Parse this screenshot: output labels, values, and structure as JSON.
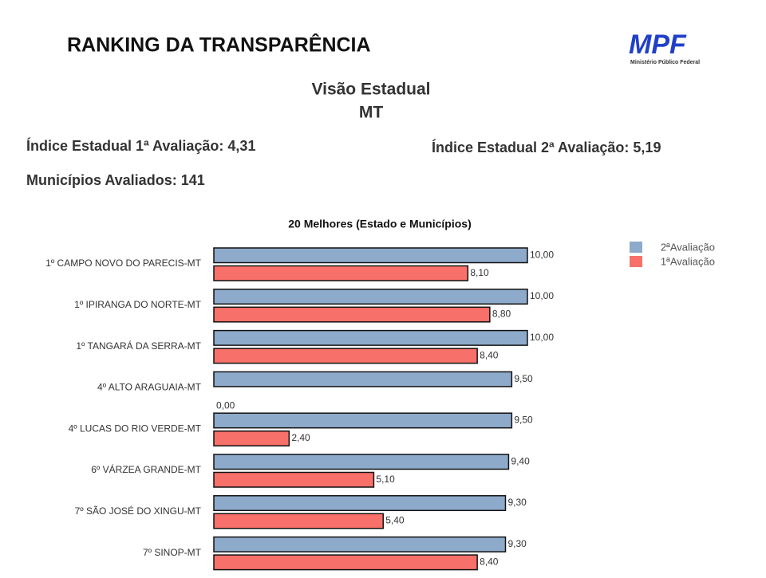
{
  "header": {
    "title": "RANKING DA TRANSPARÊNCIA",
    "logo": "MPF",
    "logo_subtitle": "Ministério Público Federal"
  },
  "heading": {
    "line1": "Visão Estadual",
    "line2": "MT"
  },
  "stats": {
    "index1": "Índice Estadual 1ª Avaliação: 4,31",
    "index2": "Índice Estadual 2ª Avaliação: 5,19",
    "municipalities": "Municípios Avaliados: 141"
  },
  "chart_data": {
    "type": "bar",
    "orientation": "horizontal",
    "title": "20 Melhores (Estado e Municípios)",
    "categories": [
      "1º CAMPO NOVO DO PARECIS-MT",
      "1º IPIRANGA DO NORTE-MT",
      "1º TANGARÁ DA SERRA-MT",
      "4º ALTO ARAGUAIA-MT",
      "4º LUCAS DO RIO VERDE-MT",
      "6º VÁRZEA GRANDE-MT",
      "7º SÃO JOSÉ DO XINGU-MT",
      "7º SINOP-MT"
    ],
    "series": [
      {
        "name": "2ªAvaliação",
        "color": "#8eaacb",
        "values": [
          10,
          10,
          10,
          9.5,
          9.5,
          9.4,
          9.3,
          9.3
        ],
        "value_labels": [
          "10,00",
          "10,00",
          "10,00",
          "9,50",
          "9,50",
          "9,40",
          "9,30",
          "9,30"
        ]
      },
      {
        "name": "1ªAvaliação",
        "color": "#f8706a",
        "values": [
          8.1,
          8.8,
          8.4,
          0,
          2.4,
          5.1,
          5.4,
          8.4
        ],
        "value_labels": [
          "8,10",
          "8,80",
          "8,40",
          "0,00",
          "2,40",
          "5,10",
          "5,40",
          "8,40"
        ]
      }
    ],
    "legend": "top-right"
  }
}
